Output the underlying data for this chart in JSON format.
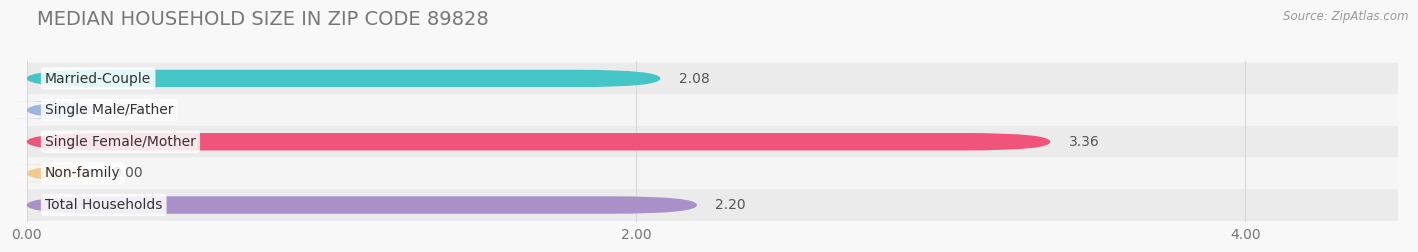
{
  "title": "MEDIAN HOUSEHOLD SIZE IN ZIP CODE 89828",
  "source": "Source: ZipAtlas.com",
  "categories": [
    "Married-Couple",
    "Single Male/Father",
    "Single Female/Mother",
    "Non-family",
    "Total Households"
  ],
  "values": [
    2.08,
    0.0,
    3.36,
    0.0,
    2.2
  ],
  "bar_colors": [
    "#45C5C5",
    "#A0B4E0",
    "#F0547A",
    "#F5C890",
    "#A990C8"
  ],
  "value_label_colors": [
    "#555555",
    "#555555",
    "#555555",
    "#555555",
    "#555555"
  ],
  "xlim": [
    0.0,
    4.5
  ],
  "x_axis_max": 4.0,
  "xticks": [
    0.0,
    2.0,
    4.0
  ],
  "xtick_labels": [
    "0.00",
    "2.00",
    "4.00"
  ],
  "bar_height": 0.55,
  "zero_bar_width": 0.22,
  "background_color": "#f8f8f8",
  "row_bg_colors": [
    "#ebebeb",
    "#f5f5f5"
  ],
  "title_fontsize": 14,
  "label_fontsize": 10,
  "value_fontsize": 10,
  "tick_fontsize": 10,
  "title_color": "#777777",
  "source_color": "#999999"
}
